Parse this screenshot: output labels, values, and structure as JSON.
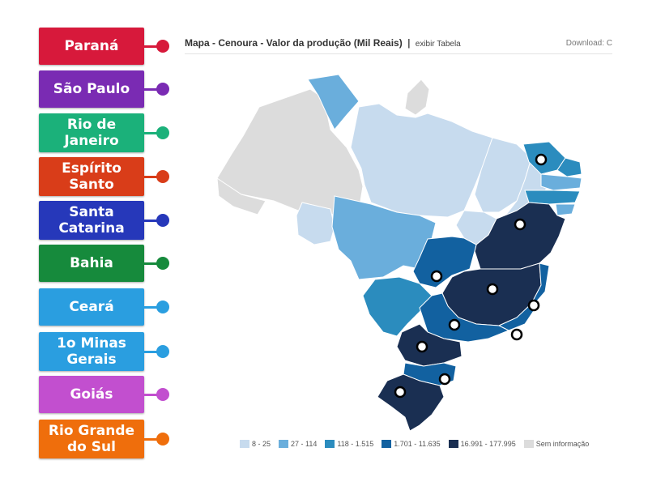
{
  "labels": [
    {
      "text": "Paraná",
      "color": "#d7193b",
      "dot": "#d7193b"
    },
    {
      "text": "São Paulo",
      "color": "#7a2bb3",
      "dot": "#7a2bb3"
    },
    {
      "text": "Rio de Janeiro",
      "color": "#1bb17a",
      "dot": "#1bb17a"
    },
    {
      "text": "Espírito Santo",
      "color": "#d93d19",
      "dot": "#d93d19"
    },
    {
      "text": "Santa Catarina",
      "color": "#2638ba",
      "dot": "#2638ba"
    },
    {
      "text": "Bahia",
      "color": "#168a3c",
      "dot": "#168a3c"
    },
    {
      "text": "Ceará",
      "color": "#2a9ee0",
      "dot": "#2a9ee0"
    },
    {
      "text": "1o Minas Gerais",
      "color": "#2a9ee0",
      "dot": "#2a9ee0"
    },
    {
      "text": "Goiás",
      "color": "#c24fcf",
      "dot": "#c24fcf"
    },
    {
      "text": "Rio Grande do Sul",
      "color": "#ef6e0c",
      "dot": "#ef6e0c"
    }
  ],
  "map": {
    "title": "Mapa - Cenoura - Valor da produção (Mil Reais)",
    "separator": "|",
    "table_link": "exibir Tabela",
    "download": "Download: C",
    "colors": {
      "very_light": "#c7dbee",
      "light": "#6aaedc",
      "medium": "#2b8cbe",
      "dark": "#1261a0",
      "darkest": "#1a2f52",
      "none": "#dcdcdc"
    },
    "legend": [
      {
        "text": "8 - 25",
        "color": "#c7dbee"
      },
      {
        "text": "27 - 114",
        "color": "#6aaedc"
      },
      {
        "text": "118 - 1.515",
        "color": "#2b8cbe"
      },
      {
        "text": "1.701 - 11.635",
        "color": "#1261a0"
      },
      {
        "text": "16.991 - 177.995",
        "color": "#1a2f52"
      },
      {
        "text": "Sem informação",
        "color": "#dcdcdc"
      }
    ]
  }
}
